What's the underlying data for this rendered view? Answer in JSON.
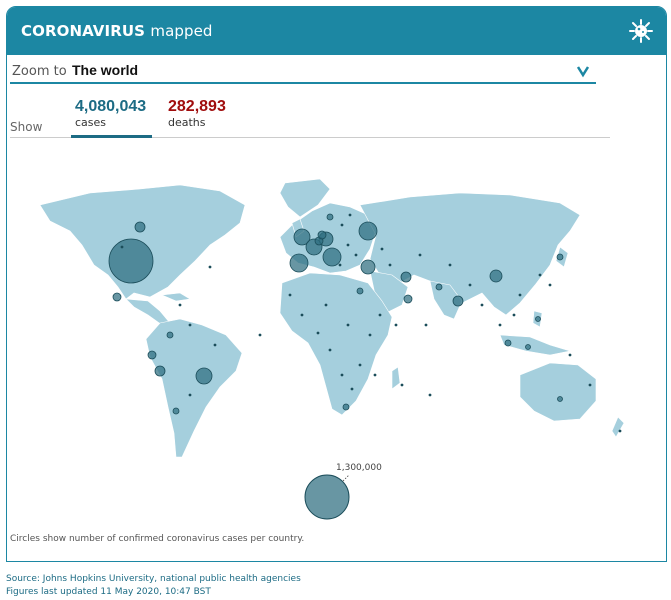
{
  "header": {
    "title_bold": "CORONAVIRUS",
    "title_rest": "mapped",
    "icon": "virus-icon"
  },
  "zoom": {
    "label": "Zoom to",
    "value": "The world",
    "icon": "chevron-down-icon"
  },
  "show": {
    "label": "Show",
    "tabs": [
      {
        "value": "4,080,043",
        "label": "cases"
      },
      {
        "value": "282,893",
        "label": "deaths"
      }
    ]
  },
  "legend": {
    "value": "1,300,000"
  },
  "caption": "Circles show number of confirmed coronavirus cases per country.",
  "source": {
    "line1": "Source: Johns Hopkins University, national public health agencies",
    "line2": "Figures last updated 11 May 2020, 10:47 BST"
  },
  "colors": {
    "accent": "#1c87a3",
    "cases": "#1c6b84",
    "deaths": "#a00d0d",
    "land": "#a5cfdd",
    "bubble": "#2e6e80"
  }
}
